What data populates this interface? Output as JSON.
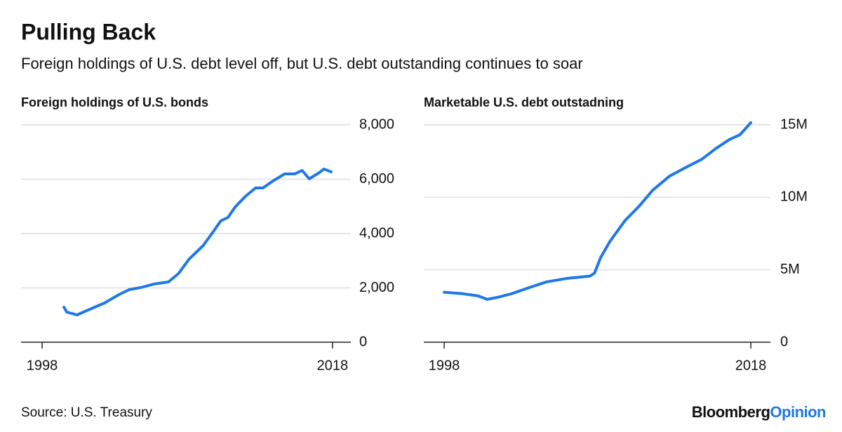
{
  "title": "Pulling Back",
  "subtitle": "Foreign holdings of U.S. debt level off, but U.S. debt outstanding continues to soar",
  "source": "Source: U.S. Treasury",
  "logo": {
    "brand": "Bloomberg",
    "suffix": "Opinion"
  },
  "chart_data": [
    {
      "type": "line",
      "title": "Foreign holdings of U.S. bonds",
      "x": [
        1999.5,
        1999.7,
        2000.4,
        2001.4,
        2002.3,
        2003.3,
        2004.0,
        2004.8,
        2005.7,
        2006.7,
        2007.4,
        2008.1,
        2009.1,
        2009.8,
        2010.3,
        2010.8,
        2011.3,
        2012.0,
        2012.7,
        2013.2,
        2013.9,
        2014.7,
        2015.4,
        2015.9,
        2016.4,
        2017.1,
        2017.4,
        2017.9
      ],
      "series": [
        {
          "color": "#1f78e8",
          "values": [
            1290,
            1110,
            1006,
            1239,
            1445,
            1755,
            1935,
            2013,
            2142,
            2219,
            2529,
            3045,
            3561,
            4077,
            4465,
            4594,
            4981,
            5368,
            5677,
            5677,
            5935,
            6194,
            6194,
            6323,
            6013,
            6245,
            6374,
            6271
          ]
        }
      ],
      "xlim": [
        1996.55,
        2019.26
      ],
      "xticks": [
        1998,
        2018
      ],
      "ylim": [
        0,
        8000
      ],
      "yticks": [
        0,
        {
          "value": 2000,
          "label": "2,000"
        },
        {
          "value": 4000,
          "label": "4,000"
        },
        {
          "value": 6000,
          "label": "6,000"
        },
        {
          "value": 8000,
          "label": "8,000"
        }
      ],
      "grid": true
    },
    {
      "type": "line",
      "title": "Marketable U.S. debt outstadning",
      "x": [
        1998.0,
        1999.2,
        2000.2,
        2000.8,
        2001.5,
        2002.4,
        2003.6,
        2004.7,
        2006.1,
        2007.5,
        2007.8,
        2008.2,
        2008.8,
        2009.8,
        2010.7,
        2011.6,
        2012.7,
        2013.9,
        2014.8,
        2015.7,
        2016.6,
        2017.3,
        2018.0
      ],
      "series": [
        {
          "color": "#1f78e8",
          "values": [
            3450000,
            3350000,
            3200000,
            2960000,
            3100000,
            3350000,
            3790000,
            4170000,
            4420000,
            4560000,
            4760000,
            5830000,
            6940000,
            8400000,
            9370000,
            10490000,
            11460000,
            12140000,
            12620000,
            13350000,
            13980000,
            14320000,
            15150000
          ]
        }
      ],
      "xlim": [
        1996.67,
        2019.28
      ],
      "xticks": [
        1998,
        2018
      ],
      "ylim": [
        0,
        15000000
      ],
      "yticks": [
        0,
        {
          "value": 5000000,
          "label": "5M"
        },
        {
          "value": 10000000,
          "label": "10M"
        },
        {
          "value": 15000000,
          "label": "15M"
        }
      ],
      "grid": true
    }
  ]
}
